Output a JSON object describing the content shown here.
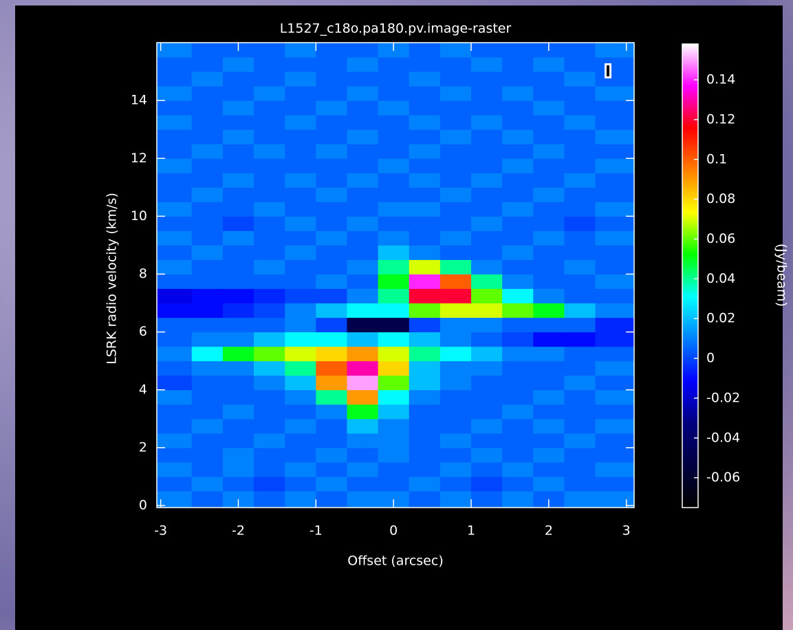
{
  "chart_data": {
    "type": "heatmap",
    "title": "L1527_c18o.pa180.pv.image-raster",
    "xlabel": "Offset (arcsec)",
    "ylabel": "LSRK radio velocity  (km/s)",
    "colorbar_label": "(Jy/beam)",
    "xlim": [
      -3.05,
      3.1
    ],
    "ylim": [
      -0.07,
      16
    ],
    "xticks": [
      -3,
      -2,
      -1,
      0,
      1,
      2,
      3
    ],
    "yticks": [
      0,
      2,
      4,
      6,
      8,
      10,
      12,
      14
    ],
    "clim": [
      -0.075,
      0.158
    ],
    "cticks": [
      -0.06,
      -0.04,
      -0.02,
      0,
      0.02,
      0.04,
      0.06,
      0.08,
      0.1,
      0.12,
      0.14
    ],
    "colormap": [
      "#000000",
      "#000040",
      "#00007f",
      "#0000ff",
      "#0080ff",
      "#00ffff",
      "#00ff00",
      "#ffff00",
      "#ff8000",
      "#ff0000",
      "#ff00ff",
      "#ffffff"
    ],
    "x": [
      -2.8,
      -2.4,
      -2.0,
      -1.6,
      -1.2,
      -0.8,
      -0.4,
      0,
      0.4,
      0.8,
      1.2,
      1.6,
      2.0,
      2.4,
      2.8
    ],
    "y": [
      0.25,
      0.75,
      1.25,
      1.75,
      2.25,
      2.75,
      3.25,
      3.75,
      4.25,
      4.75,
      5.25,
      5.75,
      6.25,
      6.75,
      7.25,
      7.75,
      8.25,
      8.75,
      9.25,
      9.75,
      10.25,
      10.75,
      11.25,
      11.75,
      12.25,
      12.75,
      13.25,
      13.75,
      14.25,
      14.75,
      15.25,
      15.75
    ],
    "values": [
      [
        0.01,
        0.005,
        0.01,
        0.005,
        0.01,
        0.005,
        0.01,
        0.01,
        0.005,
        0.01,
        0.005,
        0.01,
        0.005,
        0.01,
        0.01
      ],
      [
        0.005,
        0.01,
        0.005,
        0,
        0.005,
        0.01,
        0.005,
        0.005,
        0.01,
        0.005,
        0,
        0.005,
        0.01,
        0.005,
        0.005
      ],
      [
        0.01,
        0.005,
        0.01,
        0.005,
        0.01,
        0.005,
        0.01,
        0.005,
        0.005,
        0.01,
        0.005,
        0.01,
        0.005,
        0.005,
        0.01
      ],
      [
        0.005,
        0.005,
        0.01,
        0.005,
        0.005,
        0.01,
        0.005,
        0.01,
        0.005,
        0.005,
        0.01,
        0.005,
        0.01,
        0.005,
        0.005
      ],
      [
        0.01,
        0.005,
        0.005,
        0.01,
        0.005,
        0.005,
        0.01,
        0.01,
        0.005,
        0.01,
        0.005,
        0.005,
        0.005,
        0.01,
        0.005
      ],
      [
        0.005,
        0.01,
        0.005,
        0.005,
        0.01,
        0.005,
        0.02,
        0.01,
        0.005,
        0.005,
        0.01,
        0.005,
        0.01,
        0.005,
        0.01
      ],
      [
        0.005,
        0.005,
        0.01,
        0.005,
        0.005,
        0.01,
        0.05,
        0.02,
        0.005,
        0.005,
        0.005,
        0.01,
        0.005,
        0.005,
        0.005
      ],
      [
        0.01,
        0.005,
        0.005,
        0.005,
        0.01,
        0.04,
        0.09,
        0.03,
        0.01,
        0.005,
        0.005,
        0.005,
        0.01,
        0.005,
        0.01
      ],
      [
        0,
        0.005,
        0.005,
        0.01,
        0.02,
        0.09,
        0.15,
        0.06,
        0.02,
        0.01,
        0.005,
        0.005,
        0.005,
        0.01,
        0.005
      ],
      [
        0.005,
        0.01,
        0.01,
        0.02,
        0.04,
        0.1,
        0.13,
        0.08,
        0.02,
        0.01,
        0.01,
        0.005,
        0.005,
        0.005,
        0.01
      ],
      [
        0.01,
        0.03,
        0.05,
        0.06,
        0.07,
        0.08,
        0.09,
        0.07,
        0.04,
        0.03,
        0.02,
        0.01,
        0.01,
        0.005,
        0.005
      ],
      [
        0.005,
        0.01,
        0.01,
        0.02,
        0.03,
        0.03,
        0.02,
        0.03,
        0.02,
        0.01,
        0.005,
        0,
        -0.01,
        -0.01,
        -0.005
      ],
      [
        0.005,
        0.005,
        0.005,
        0.005,
        0.01,
        0,
        -0.05,
        -0.05,
        0,
        0.01,
        0.01,
        0.005,
        0.005,
        0.005,
        -0.005
      ],
      [
        -0.01,
        -0.01,
        -0.005,
        0,
        0.01,
        0.02,
        0.03,
        0.03,
        0.06,
        0.07,
        0.07,
        0.06,
        0.05,
        0.02,
        0.01
      ],
      [
        -0.015,
        -0.01,
        -0.01,
        -0.005,
        0,
        0,
        0.01,
        0.04,
        0.12,
        0.12,
        0.06,
        0.03,
        0.01,
        0.005,
        0.005
      ],
      [
        0.005,
        0.005,
        0.005,
        0.005,
        0.005,
        0.01,
        0.005,
        0.05,
        0.14,
        0.1,
        0.04,
        0.01,
        0.005,
        0.005,
        0.01
      ],
      [
        0.01,
        0.005,
        0.005,
        0.01,
        0.005,
        0.005,
        0.01,
        0.04,
        0.07,
        0.04,
        0.01,
        0.005,
        0.005,
        0.01,
        0.005
      ],
      [
        0.005,
        0.01,
        0.005,
        0.005,
        0.01,
        0.005,
        0.005,
        0.02,
        0.01,
        0.005,
        0.005,
        0.01,
        0.005,
        0.005,
        0.005
      ],
      [
        0.01,
        0.005,
        0.01,
        0.005,
        0.005,
        0.01,
        0.005,
        0.01,
        0.005,
        0.01,
        0.005,
        0.005,
        0.01,
        0.005,
        0.01
      ],
      [
        0.005,
        0.005,
        0,
        0.005,
        0.01,
        0.005,
        0.01,
        0.005,
        0.005,
        0.005,
        0.01,
        0.005,
        0.005,
        0,
        0.005
      ],
      [
        0.01,
        0.005,
        0.005,
        0.01,
        0.005,
        0.005,
        0.005,
        0.01,
        0.01,
        0.005,
        0.005,
        0.01,
        0.005,
        0.005,
        0.01
      ],
      [
        0.005,
        0.01,
        0.005,
        0.005,
        0.005,
        0.01,
        0.005,
        0.005,
        0.005,
        0.01,
        0.005,
        0.005,
        0.01,
        0.005,
        0.005
      ],
      [
        0.005,
        0.005,
        0.01,
        0.005,
        0.01,
        0.005,
        0.01,
        0.005,
        0.01,
        0.005,
        0.01,
        0.005,
        0.005,
        0.01,
        0.005
      ],
      [
        0.01,
        0.005,
        0.005,
        0.005,
        0.005,
        0.005,
        0.005,
        0.01,
        0.005,
        0.005,
        0.005,
        0.01,
        0.005,
        0.005,
        0.01
      ],
      [
        0.005,
        0.01,
        0.005,
        0.01,
        0.005,
        0.01,
        0.005,
        0.005,
        0.01,
        0.005,
        0.005,
        0.005,
        0.01,
        0.005,
        0.005
      ],
      [
        0.005,
        0.005,
        0.01,
        0.005,
        0.005,
        0.005,
        0.01,
        0.005,
        0.005,
        0.01,
        0.005,
        0.01,
        0.005,
        0.005,
        0.01
      ],
      [
        0.01,
        0.005,
        0.005,
        0.005,
        0.01,
        0.005,
        0.005,
        0.005,
        0.01,
        0.005,
        0.01,
        0.005,
        0.005,
        0.01,
        0.005
      ],
      [
        0.005,
        0.005,
        0.01,
        0.005,
        0.005,
        0.01,
        0.005,
        0.01,
        0.005,
        0.005,
        0.005,
        0.005,
        0.01,
        0.005,
        0.005
      ],
      [
        0.01,
        0.005,
        0.005,
        0.01,
        0.005,
        0.005,
        0.01,
        0.005,
        0.005,
        0.01,
        0.005,
        0.01,
        0.005,
        0.005,
        0.01
      ],
      [
        0.005,
        0.01,
        0.005,
        0.005,
        0.01,
        0.005,
        0.005,
        0.005,
        0.01,
        0.005,
        0.005,
        0.005,
        0.005,
        0.01,
        0.005
      ],
      [
        0.005,
        0.005,
        0.01,
        0.005,
        0.005,
        0.005,
        0.01,
        0.005,
        0.005,
        0.005,
        0.01,
        0.005,
        0.01,
        0.005,
        0.005
      ],
      [
        0.01,
        0.005,
        0.005,
        0.005,
        0.01,
        0.005,
        0.005,
        0.01,
        0.005,
        0.01,
        0.005,
        0.005,
        0.005,
        0.005,
        0.01
      ]
    ]
  }
}
